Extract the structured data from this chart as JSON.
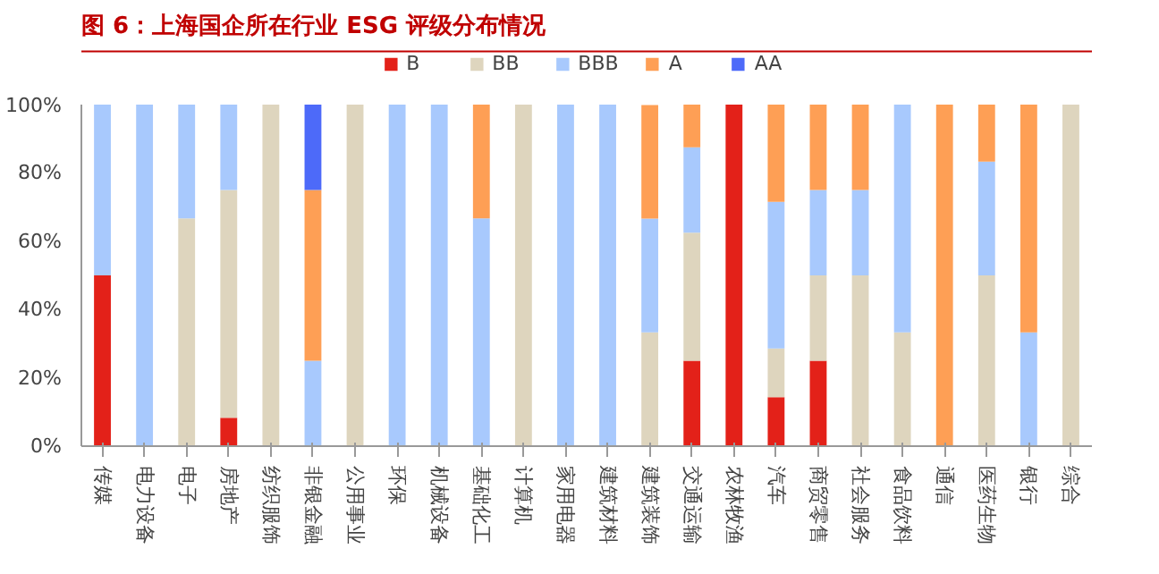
{
  "chart_data": {
    "type": "bar",
    "stacked": true,
    "title": "图 6：上海国企所在行业 ESG 评级分布情况",
    "categories": [
      "传媒",
      "电力设备",
      "电子",
      "房地产",
      "纺织服饰",
      "非银金融",
      "公用事业",
      "环保",
      "机械设备",
      "基础化工",
      "计算机",
      "家用电器",
      "建筑材料",
      "建筑装饰",
      "交通运输",
      "农林牧渔",
      "汽车",
      "商贸零售",
      "社会服务",
      "食品饮料",
      "通信",
      "医药生物",
      "银行",
      "综合"
    ],
    "series": [
      {
        "name": "B",
        "color": "#e32119",
        "values": [
          50,
          0,
          0,
          8.3,
          0,
          0,
          0,
          0,
          0,
          0,
          0,
          0,
          0,
          0,
          25,
          100,
          14.3,
          25,
          0,
          0,
          0,
          0,
          0,
          0
        ]
      },
      {
        "name": "BB",
        "color": "#ded5be",
        "values": [
          0,
          0,
          66.7,
          66.7,
          100,
          0,
          100,
          0,
          0,
          0,
          100,
          0,
          0,
          33.3,
          37.5,
          0,
          14.3,
          25,
          50,
          33.3,
          0,
          50,
          0,
          100
        ]
      },
      {
        "name": "BBB",
        "color": "#a8c9fd",
        "values": [
          50,
          100,
          33.3,
          25,
          0,
          25,
          0,
          100,
          100,
          66.7,
          0,
          100,
          100,
          33.3,
          25,
          0,
          42.9,
          25,
          25,
          66.7,
          0,
          33.3,
          33.3,
          0
        ]
      },
      {
        "name": "A",
        "color": "#fe9f55",
        "values": [
          0,
          0,
          0,
          0,
          0,
          50,
          0,
          0,
          0,
          33.3,
          0,
          0,
          0,
          33.3,
          12.5,
          0,
          28.6,
          25,
          25,
          0,
          100,
          16.7,
          66.7,
          0
        ]
      },
      {
        "name": "AA",
        "color": "#4d6af9",
        "values": [
          0,
          0,
          0,
          0,
          0,
          25,
          0,
          0,
          0,
          0,
          0,
          0,
          0,
          0,
          0,
          0,
          0,
          0,
          0,
          0,
          0,
          0,
          0,
          0
        ]
      }
    ],
    "ylim": [
      0,
      100
    ],
    "yticks": [
      {
        "value": 0,
        "label": "0%"
      },
      {
        "value": 20,
        "label": "20%"
      },
      {
        "value": 40,
        "label": "40%"
      },
      {
        "value": 60,
        "label": "60%"
      },
      {
        "value": 80,
        "label": "80%"
      },
      {
        "value": 100,
        "label": "100%"
      }
    ],
    "legend": "top",
    "grid": false
  }
}
